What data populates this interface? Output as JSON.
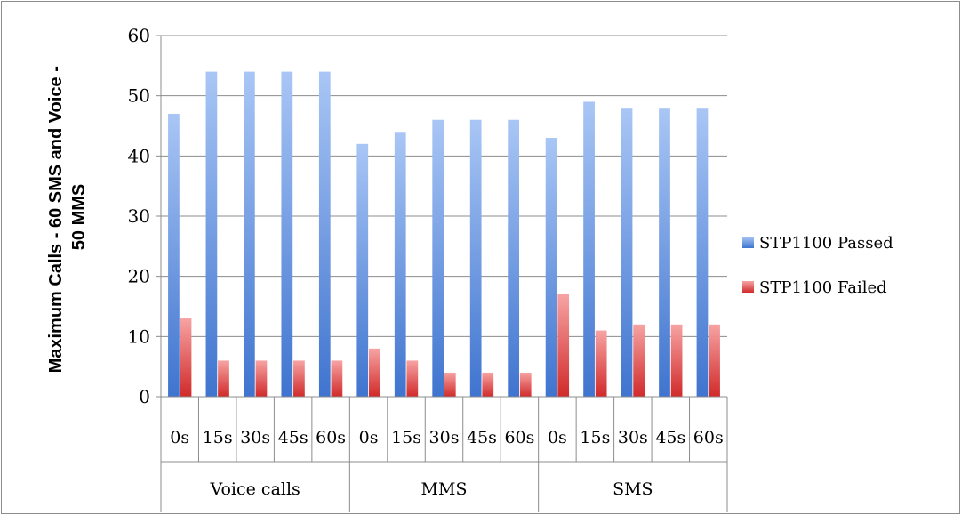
{
  "chart_data": {
    "type": "bar",
    "ylabel_lines": [
      "Maximum Calls - 60 SMS and Voice -",
      "50 MMS"
    ],
    "ylim": [
      0,
      60
    ],
    "yticks": [
      0,
      10,
      20,
      30,
      40,
      50,
      60
    ],
    "grid": true,
    "legend_position": "right",
    "groups": [
      {
        "label": "Voice calls",
        "categories": [
          "0s",
          "15s",
          "30s",
          "45s",
          "60s"
        ]
      },
      {
        "label": "MMS",
        "categories": [
          "0s",
          "15s",
          "30s",
          "45s",
          "60s"
        ]
      },
      {
        "label": "SMS",
        "categories": [
          "0s",
          "15s",
          "30s",
          "45s",
          "60s"
        ]
      }
    ],
    "series": [
      {
        "name": "STP1100 Passed",
        "color": "#4a7fd6",
        "color_light": "#a9c6f5",
        "values": [
          47,
          54,
          54,
          54,
          54,
          42,
          44,
          46,
          46,
          46,
          43,
          49,
          48,
          48,
          48
        ]
      },
      {
        "name": "STP1100 Failed",
        "color": "#d83b3b",
        "color_light": "#f7a3a3",
        "values": [
          13,
          6,
          6,
          6,
          6,
          8,
          6,
          4,
          4,
          4,
          17,
          11,
          12,
          12,
          12
        ]
      }
    ]
  }
}
